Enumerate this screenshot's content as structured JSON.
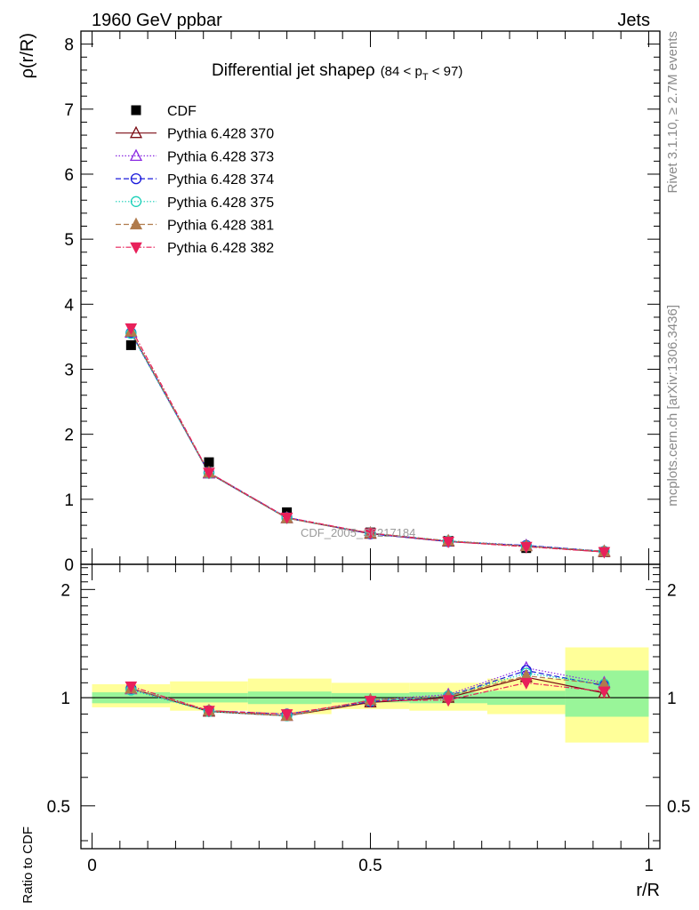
{
  "header": {
    "energy_label": "1960 GeV ppbar",
    "process_label": "Jets"
  },
  "side_labels": {
    "rivet": "Rivet 3.1.10, ≥ 2.7M events",
    "mcplots": "mcplots.cern.ch [arXiv:1306.3436]"
  },
  "watermark": "CDF_2005_S6217184",
  "chart_data": {
    "type": "scatter",
    "title_main": "Differential jet shapeρ",
    "title_range": "(84 < p_T < 97)",
    "title_range_parts": {
      "pre": "(84 < p",
      "sub": "T",
      "post": " < 97)"
    },
    "ylabel": "ρ(r/R)",
    "xlabel": "r/R",
    "ratio_ylabel": "Ratio to CDF",
    "x": [
      0.07,
      0.21,
      0.35,
      0.5,
      0.64,
      0.78,
      0.92
    ],
    "xlim": [
      -0.02,
      1.02
    ],
    "ylim": [
      0,
      8.2
    ],
    "yticks": [
      0,
      1,
      2,
      3,
      4,
      5,
      6,
      7,
      8
    ],
    "xticks": [
      0,
      0.5,
      1
    ],
    "xtick_labels": [
      "0",
      "0.5",
      "1"
    ],
    "ratio_ylim": [
      0.38,
      2.35
    ],
    "ratio_yticks": [
      0.5,
      1,
      2
    ],
    "ratio_ytick_labels": [
      "0.5",
      "1",
      "2"
    ],
    "data": {
      "name": "CDF",
      "values": [
        3.37,
        1.57,
        0.8,
        0.49,
        0.36,
        0.25,
        0.19
      ]
    },
    "bands": {
      "edges": [
        0.0,
        0.14,
        0.28,
        0.43,
        0.57,
        0.71,
        0.85,
        1.0
      ],
      "inner": [
        [
          0.965,
          1.035
        ],
        [
          0.97,
          1.03
        ],
        [
          0.96,
          1.04
        ],
        [
          0.97,
          1.03
        ],
        [
          0.965,
          1.035
        ],
        [
          0.955,
          1.045
        ],
        [
          0.885,
          1.19
        ]
      ],
      "outer": [
        [
          0.94,
          1.09
        ],
        [
          0.92,
          1.11
        ],
        [
          0.9,
          1.13
        ],
        [
          0.93,
          1.1
        ],
        [
          0.92,
          1.1
        ],
        [
          0.9,
          1.13
        ],
        [
          0.75,
          1.38
        ]
      ]
    },
    "series": [
      {
        "name": "Pythia 6.428 370",
        "color": "#7b0c14",
        "marker": "triangle-up-open",
        "dash": "",
        "values": [
          3.57,
          1.4,
          0.71,
          0.47,
          0.35,
          0.28,
          0.19
        ],
        "ratio": [
          1.06,
          0.915,
          0.89,
          0.97,
          1.0,
          1.14,
          1.03
        ]
      },
      {
        "name": "Pythia 6.428 373",
        "color": "#8a2be2",
        "marker": "triangle-up-open",
        "dash": "1.5,2",
        "values": [
          3.56,
          1.4,
          0.71,
          0.48,
          0.36,
          0.29,
          0.2
        ],
        "ratio": [
          1.055,
          0.92,
          0.89,
          0.985,
          1.02,
          1.21,
          1.1
        ]
      },
      {
        "name": "Pythia 6.428 374",
        "color": "#1a1adb",
        "marker": "circle-open",
        "dash": "6,3",
        "values": [
          3.56,
          1.41,
          0.72,
          0.47,
          0.35,
          0.29,
          0.2
        ],
        "ratio": [
          1.06,
          0.92,
          0.9,
          0.975,
          1.01,
          1.19,
          1.08
        ]
      },
      {
        "name": "Pythia 6.428 375",
        "color": "#19d0b8",
        "marker": "circle-open",
        "dash": "1.5,2",
        "values": [
          3.55,
          1.4,
          0.71,
          0.48,
          0.36,
          0.28,
          0.2
        ],
        "ratio": [
          1.05,
          0.915,
          0.89,
          0.98,
          1.01,
          1.17,
          1.09
        ]
      },
      {
        "name": "Pythia 6.428 381",
        "color": "#b07b4c",
        "marker": "triangle-up-filled",
        "dash": "6,3",
        "values": [
          3.58,
          1.41,
          0.71,
          0.48,
          0.36,
          0.28,
          0.2
        ],
        "ratio": [
          1.06,
          0.92,
          0.89,
          0.985,
          1.01,
          1.15,
          1.09
        ]
      },
      {
        "name": "Pythia 6.428 382",
        "color": "#e8205a",
        "marker": "triangle-down-filled",
        "dash": "6,2,1.5,2",
        "values": [
          3.63,
          1.41,
          0.72,
          0.48,
          0.35,
          0.27,
          0.19
        ],
        "ratio": [
          1.075,
          0.92,
          0.9,
          0.98,
          0.985,
          1.1,
          1.04
        ]
      }
    ]
  }
}
